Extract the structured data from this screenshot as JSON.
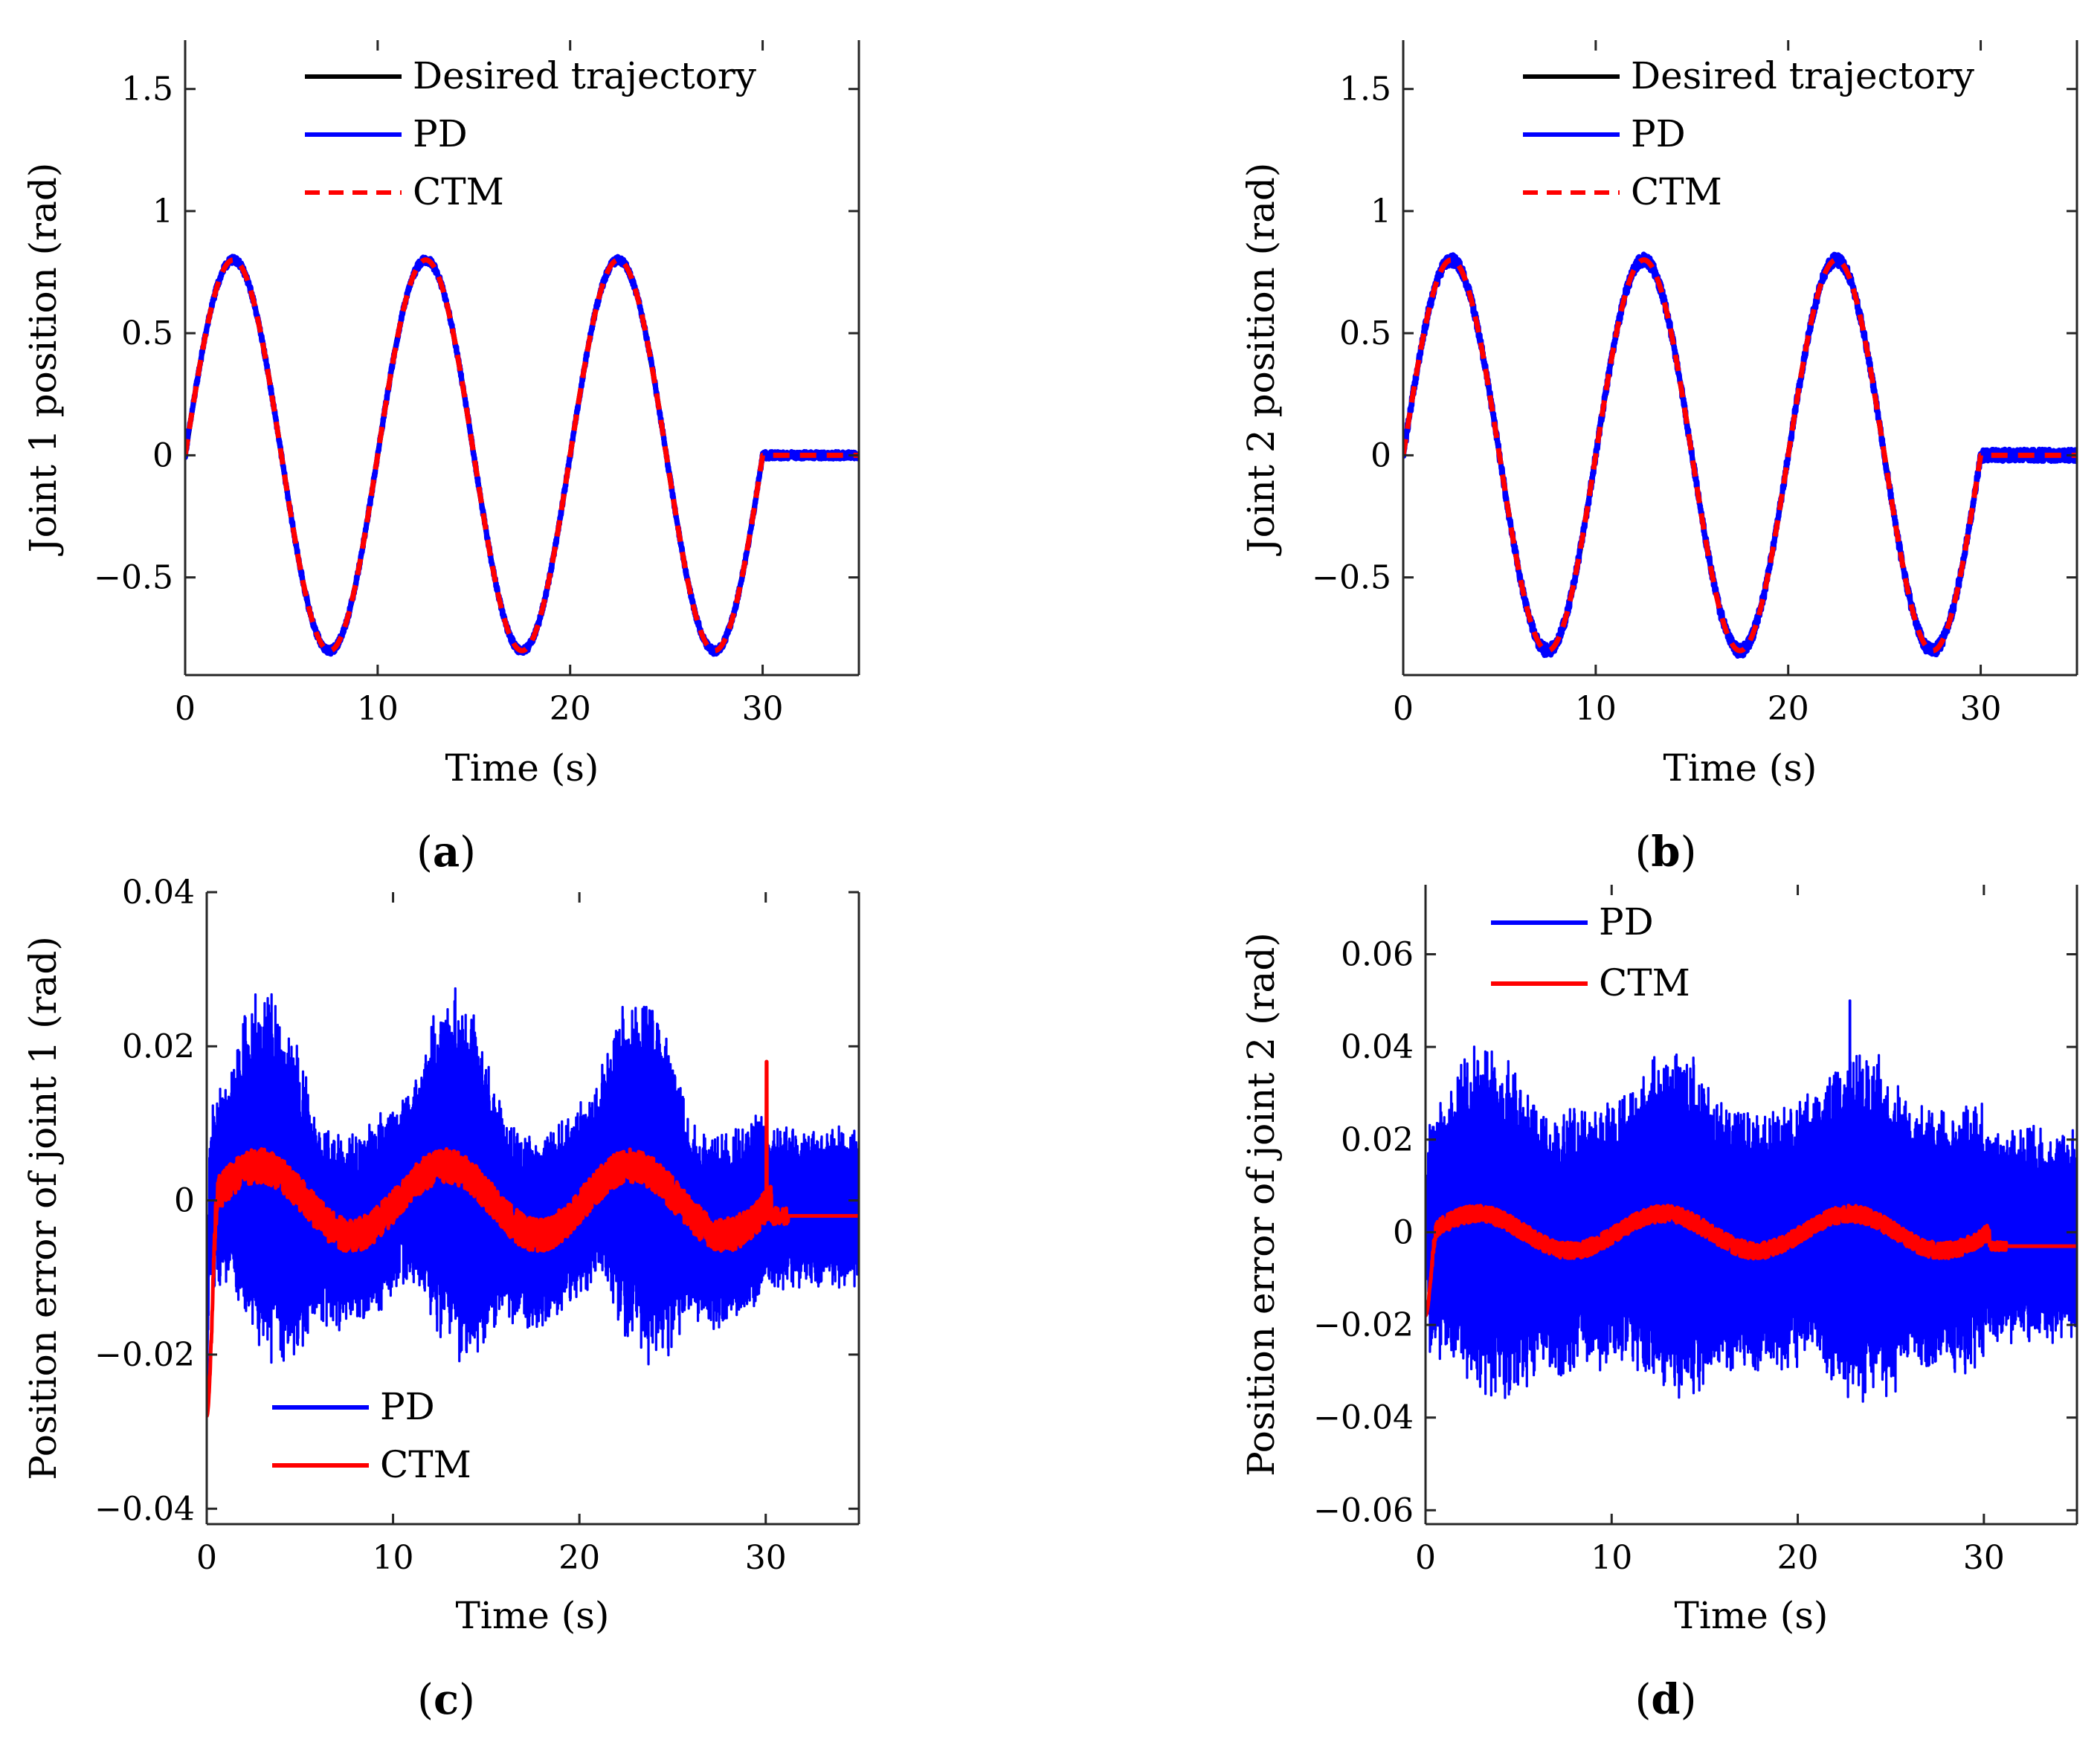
{
  "chart_data": [
    {
      "id": "a",
      "type": "line",
      "panel_label": "a",
      "xlabel": "Time (s)",
      "ylabel": "Joint 1 position (rad)",
      "xlim": [
        0,
        35
      ],
      "ylim": [
        -0.9,
        1.7
      ],
      "xticks": [
        0,
        10,
        20,
        30
      ],
      "xtick_labels": [
        "0",
        "10",
        "20",
        "30"
      ],
      "yticks": [
        -0.5,
        0,
        0.5,
        1,
        1.5
      ],
      "ytick_labels": [
        "−0.5",
        "0",
        "0.5",
        "1",
        "1.5"
      ],
      "legend_position": "top-left",
      "legend": [
        "Desired trajectory",
        "PD",
        "CTM"
      ],
      "signal": {
        "kind": "sine",
        "amplitude": 0.8,
        "period_s": 10,
        "end_time_s": 30,
        "t_end": 35
      },
      "series": [
        {
          "name": "Desired trajectory",
          "color": "#000000",
          "style": "solid",
          "noise_amplitude": 0.0
        },
        {
          "name": "PD",
          "color": "#0000ff",
          "style": "solid",
          "noise_amplitude": 0.015
        },
        {
          "name": "CTM",
          "color": "#ff0000",
          "style": "dashed",
          "noise_amplitude": 0.0
        }
      ]
    },
    {
      "id": "b",
      "type": "line",
      "panel_label": "b",
      "xlabel": "Time (s)",
      "ylabel": "Joint 2 position (rad)",
      "xlim": [
        0,
        35
      ],
      "ylim": [
        -0.9,
        1.7
      ],
      "xticks": [
        0,
        10,
        20,
        30
      ],
      "xtick_labels": [
        "0",
        "10",
        "20",
        "30"
      ],
      "yticks": [
        -0.5,
        0,
        0.5,
        1,
        1.5
      ],
      "ytick_labels": [
        "−0.5",
        "0",
        "0.5",
        "1",
        "1.5"
      ],
      "legend_position": "top-left",
      "legend": [
        "Desired trajectory",
        "PD",
        "CTM"
      ],
      "signal": {
        "kind": "sine",
        "amplitude": 0.8,
        "period_s": 10,
        "end_time_s": 30,
        "t_end": 35
      },
      "series": [
        {
          "name": "Desired trajectory",
          "color": "#000000",
          "style": "solid",
          "noise_amplitude": 0.0
        },
        {
          "name": "PD",
          "color": "#0000ff",
          "style": "solid",
          "noise_amplitude": 0.025
        },
        {
          "name": "CTM",
          "color": "#ff0000",
          "style": "dashed",
          "noise_amplitude": 0.0
        }
      ]
    },
    {
      "id": "c",
      "type": "line",
      "panel_label": "c",
      "xlabel": "Time (s)",
      "ylabel": "Position error of joint 1 (rad)",
      "xlim": [
        0,
        35
      ],
      "ylim": [
        -0.042,
        0.04
      ],
      "xticks": [
        0,
        10,
        20,
        30
      ],
      "xtick_labels": [
        "0",
        "10",
        "20",
        "30"
      ],
      "yticks": [
        -0.04,
        -0.02,
        0,
        0.02,
        0.04
      ],
      "ytick_labels": [
        "−0.04",
        "−0.02",
        "0",
        "0.02",
        "0.04"
      ],
      "legend_position": "bottom-left",
      "legend": [
        "PD",
        "CTM"
      ],
      "series": [
        {
          "name": "PD",
          "color": "#0000ff",
          "style": "solid",
          "envelope_base": 0.011,
          "envelope_swing": 0.01,
          "bias_amplitude": 0.004,
          "after_30s_amplitude": 0.009,
          "initial_spike": -0.027
        },
        {
          "name": "CTM",
          "color": "#ff0000",
          "style": "solid",
          "drift_amplitude": 0.0045,
          "noise_amplitude": 0.0022,
          "initial_spike": -0.028,
          "spike_at_30s": 0.018,
          "steady_value": -0.002
        }
      ]
    },
    {
      "id": "d",
      "type": "line",
      "panel_label": "d",
      "xlabel": "Time (s)",
      "ylabel": "Position error of joint 2 (rad)",
      "xlim": [
        0,
        35
      ],
      "ylim": [
        -0.063,
        0.075
      ],
      "xticks": [
        0,
        10,
        20,
        30
      ],
      "xtick_labels": [
        "0",
        "10",
        "20",
        "30"
      ],
      "yticks": [
        -0.06,
        -0.04,
        -0.02,
        0,
        0.02,
        0.04,
        0.06
      ],
      "ytick_labels": [
        "−0.06",
        "−0.04",
        "−0.02",
        "0",
        "0.02",
        "0.04",
        "0.06"
      ],
      "legend_position": "top-left",
      "legend": [
        "PD",
        "CTM"
      ],
      "series": [
        {
          "name": "PD",
          "color": "#0000ff",
          "style": "solid",
          "envelope_base": 0.025,
          "envelope_swing": 0.008,
          "bias_amplitude": 0.002,
          "after_30s_amplitude": 0.02,
          "spike_at_23s": 0.05
        },
        {
          "name": "CTM",
          "color": "#ff0000",
          "style": "solid",
          "drift_amplitude": 0.004,
          "noise_amplitude": 0.0018,
          "initial_spike": -0.018,
          "steady_value": -0.003
        }
      ]
    }
  ]
}
